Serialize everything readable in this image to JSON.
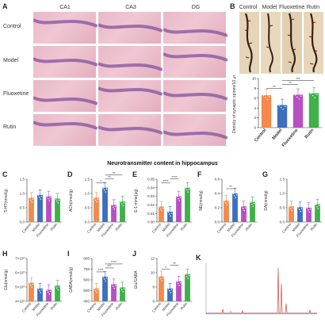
{
  "panelA": {
    "label": "A",
    "columns": [
      "CA1",
      "CA3",
      "DG"
    ],
    "rows": [
      "Control",
      "Model",
      "Fluoxetine",
      "Rutin"
    ]
  },
  "panelB": {
    "label": "B",
    "image_labels": [
      "Control",
      "Model",
      "Fluoxetine",
      "Rutin"
    ],
    "ylabel": "Density of synaptic spines/10 μm",
    "sig": [
      "**",
      "**",
      "***"
    ]
  },
  "section_title": "Neurotransmitter content in hippocampus",
  "group_colors": {
    "Control": "#f28a4c",
    "Model": "#3d6fbd",
    "Fluoxetine": "#b650c2",
    "Rutin": "#3fb04a"
  },
  "chart_data": [
    {
      "id": "B",
      "type": "bar",
      "categories": [
        "Control",
        "Model",
        "Fluoxetine",
        "Rutin"
      ],
      "values": [
        6.6,
        4.6,
        6.7,
        7.0
      ],
      "ylim": [
        0,
        10
      ],
      "yticks": [
        "0",
        "2",
        "4",
        "6",
        "8",
        "10"
      ],
      "ylabel": "Density of synaptic spines/10 μm"
    },
    {
      "id": "C",
      "label": "C",
      "type": "bar",
      "categories": [
        "Control",
        "Model",
        "Fluoxetine",
        "Rutin"
      ],
      "values": [
        0.85,
        0.95,
        0.9,
        0.82
      ],
      "ylim": [
        0,
        1.5
      ],
      "yticks": [
        "0.0",
        "0.5",
        "1.0",
        "1.5"
      ],
      "ylabel": "5-HT(nmol/g)",
      "sig": []
    },
    {
      "id": "D",
      "label": "D",
      "type": "bar",
      "categories": [
        "Control",
        "Model",
        "Fluoxetine",
        "Rutin"
      ],
      "values": [
        0.85,
        1.2,
        0.6,
        0.72
      ],
      "ylim": [
        0,
        1.5
      ],
      "yticks": [
        "0.0",
        "0.5",
        "1.0",
        "1.5"
      ],
      "ylabel": "ACh(nmol/g)",
      "sig": [
        "*",
        "**",
        "**"
      ]
    },
    {
      "id": "E",
      "label": "E",
      "type": "bar",
      "categories": [
        "Control",
        "Model",
        "Fluoxetine",
        "Rutin"
      ],
      "values": [
        0.018,
        0.012,
        0.03,
        0.04
      ],
      "ylim": [
        0,
        0.05
      ],
      "yticks": [
        "0.00",
        "0.01",
        "0.02",
        "0.03",
        "0.04",
        "0.05"
      ],
      "ylabel": "E-1-mme(μg)",
      "sig": [
        "****",
        "****"
      ]
    },
    {
      "id": "F",
      "label": "F",
      "type": "bar",
      "categories": [
        "Control",
        "Model",
        "Fluoxetine",
        "Rutin"
      ],
      "values": [
        0.3,
        0.4,
        0.22,
        0.28
      ],
      "ylim": [
        0,
        0.6
      ],
      "yticks": [
        "0.0",
        "0.2",
        "0.4",
        "0.6"
      ],
      "ylabel": "NE(nmol/g)",
      "sig": [
        "**"
      ]
    },
    {
      "id": "G",
      "label": "G",
      "type": "bar",
      "categories": [
        "Control",
        "Model",
        "Fluoxetine",
        "Rutin"
      ],
      "values": [
        0.55,
        0.52,
        0.5,
        0.62
      ],
      "ylim": [
        0,
        1.5
      ],
      "yticks": [
        "0.0",
        "0.5",
        "1.0",
        "1.5"
      ],
      "ylabel": "DA(nmol/g)",
      "sig": []
    },
    {
      "id": "H",
      "label": "H",
      "type": "bar",
      "categories": [
        "Control",
        "Model",
        "Fluoxetine",
        "Rutin"
      ],
      "values": [
        5.3,
        4.9,
        4.8,
        5.1
      ],
      "ylim": [
        4,
        7
      ],
      "yticks": [
        "4×10³",
        "5×10³",
        "6×10³",
        "7×10³"
      ],
      "ylabel": "Glu(nmol/g)",
      "sig": []
    },
    {
      "id": "I",
      "label": "I",
      "type": "bar",
      "categories": [
        "Control",
        "Model",
        "Fluoxetine",
        "Rutin"
      ],
      "values": [
        520,
        630,
        560,
        530
      ],
      "ylim": [
        400,
        800
      ],
      "yticks": [
        "400",
        "500",
        "600",
        "700",
        "800"
      ],
      "ylabel": "GABA(nmol/g)",
      "sig": [
        "****",
        "***",
        "****"
      ]
    },
    {
      "id": "J",
      "label": "J",
      "type": "bar",
      "categories": [
        "Control",
        "Model",
        "Fluoxetine",
        "Rutin"
      ],
      "values": [
        9.5,
        7.8,
        8.8,
        9.8
      ],
      "ylim": [
        6,
        12
      ],
      "yticks": [
        "6",
        "8",
        "10",
        "12"
      ],
      "ylabel": "Glu/GABA",
      "sig": [
        "*",
        "**"
      ]
    }
  ],
  "panelK": {
    "label": "K"
  }
}
